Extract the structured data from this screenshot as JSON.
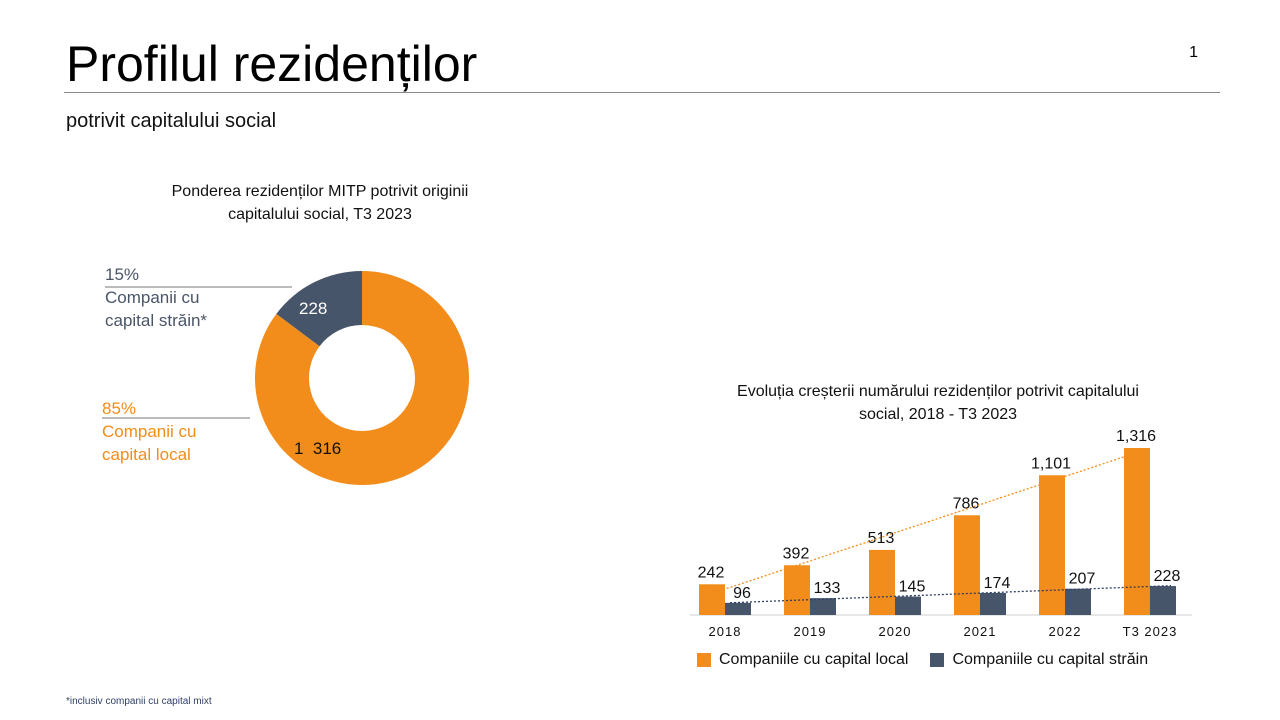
{
  "page": {
    "title": "Profilul rezidenților",
    "subtitle": "potrivit capitalului social",
    "page_number": "1",
    "footnote": "*inclusiv companii cu capital mixt"
  },
  "colors": {
    "local": "#f28c1a",
    "foreign": "#465569",
    "rule": "#8a8a8a"
  },
  "chart_data": [
    {
      "type": "pie",
      "title": "Ponderea rezidenților MITP potrivit originii capitalului social, T3 2023",
      "slices": [
        {
          "name": "Companii cu capital local",
          "value": 1316,
          "label": "1  316",
          "percent": "85%",
          "color": "#f28c1a"
        },
        {
          "name": "Companii cu capital străin*",
          "value": 228,
          "label": "228",
          "percent": "15%",
          "color": "#465569"
        }
      ],
      "callouts": [
        {
          "percent": "15%",
          "line1": "Companii cu",
          "line2": "capital străin*"
        },
        {
          "percent": "85%",
          "line1": "Companii cu",
          "line2": "capital local"
        }
      ]
    },
    {
      "type": "bar",
      "title": "Evoluția creșterii numărului rezidenților potrivit capitalului social, 2018 - T3 2023",
      "categories": [
        "2018",
        "2019",
        "2020",
        "2021",
        "2022",
        "T3 2023"
      ],
      "series": [
        {
          "name": "Companiile cu capital local",
          "values": [
            242,
            392,
            513,
            786,
            1101,
            1316
          ],
          "labels": [
            "242",
            "392",
            "513",
            "786",
            "1,101",
            "1,316"
          ],
          "color": "#f28c1a"
        },
        {
          "name": "Companiile cu capital străin",
          "values": [
            96,
            133,
            145,
            174,
            207,
            228
          ],
          "labels": [
            "96",
            "133",
            "145",
            "174",
            "207",
            "228"
          ],
          "color": "#465569"
        }
      ],
      "trendlines": true,
      "ylim": [
        0,
        1316
      ],
      "legend": "bottom"
    }
  ]
}
